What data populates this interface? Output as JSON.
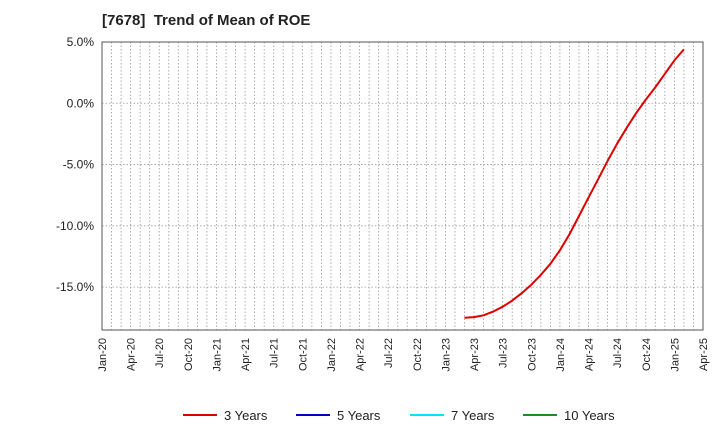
{
  "chart_data": {
    "type": "line",
    "title": "[7678]  Trend of Mean of ROE",
    "xlabel": "",
    "ylabel": "",
    "ylim": [
      -18.5,
      5.0
    ],
    "y_ticks": [
      {
        "value": 5,
        "label": "5.0%"
      },
      {
        "value": 0,
        "label": "0.0%"
      },
      {
        "value": -5,
        "label": "-5.0%"
      },
      {
        "value": -10,
        "label": "-10.0%"
      },
      {
        "value": -15,
        "label": "-15.0%"
      }
    ],
    "x_ticks": [
      "Jan-20",
      "Apr-20",
      "Jul-20",
      "Oct-20",
      "Jan-21",
      "Apr-21",
      "Jul-21",
      "Oct-21",
      "Jan-22",
      "Apr-22",
      "Jul-22",
      "Oct-22",
      "Jan-23",
      "Apr-23",
      "Jul-23",
      "Oct-23",
      "Jan-24",
      "Apr-24",
      "Jul-24",
      "Oct-24",
      "Jan-25",
      "Apr-25"
    ],
    "x_tick_dates": [
      "2020-01",
      "2020-04",
      "2020-07",
      "2020-10",
      "2021-01",
      "2021-04",
      "2021-07",
      "2021-10",
      "2022-01",
      "2022-04",
      "2022-07",
      "2022-10",
      "2023-01",
      "2023-04",
      "2023-07",
      "2023-10",
      "2024-01",
      "2024-04",
      "2024-07",
      "2024-10",
      "2025-01",
      "2025-04"
    ],
    "x_range": [
      "2020-01",
      "2025-04"
    ],
    "grid": true,
    "legend_position": "bottom",
    "series": [
      {
        "name": "3 Years",
        "color": "#dd0000",
        "points": [
          {
            "x": "2023-03",
            "y": -17.5
          },
          {
            "x": "2023-04",
            "y": -17.45
          },
          {
            "x": "2023-05",
            "y": -17.3
          },
          {
            "x": "2023-06",
            "y": -17.0
          },
          {
            "x": "2023-07",
            "y": -16.6
          },
          {
            "x": "2023-08",
            "y": -16.1
          },
          {
            "x": "2023-09",
            "y": -15.5
          },
          {
            "x": "2023-10",
            "y": -14.8
          },
          {
            "x": "2023-11",
            "y": -14.0
          },
          {
            "x": "2023-12",
            "y": -13.1
          },
          {
            "x": "2024-01",
            "y": -12.0
          },
          {
            "x": "2024-02",
            "y": -10.7
          },
          {
            "x": "2024-03",
            "y": -9.2
          },
          {
            "x": "2024-04",
            "y": -7.7
          },
          {
            "x": "2024-05",
            "y": -6.2
          },
          {
            "x": "2024-06",
            "y": -4.7
          },
          {
            "x": "2024-07",
            "y": -3.3
          },
          {
            "x": "2024-08",
            "y": -2.0
          },
          {
            "x": "2024-09",
            "y": -0.8
          },
          {
            "x": "2024-10",
            "y": 0.3
          },
          {
            "x": "2024-11",
            "y": 1.3
          },
          {
            "x": "2024-12",
            "y": 2.4
          },
          {
            "x": "2025-01",
            "y": 3.5
          },
          {
            "x": "2025-02",
            "y": 4.4
          }
        ]
      },
      {
        "name": "5 Years",
        "color": "#0000cc",
        "points": []
      },
      {
        "name": "7 Years",
        "color": "#00e5ee",
        "points": []
      },
      {
        "name": "10 Years",
        "color": "#228b22",
        "points": []
      }
    ]
  }
}
